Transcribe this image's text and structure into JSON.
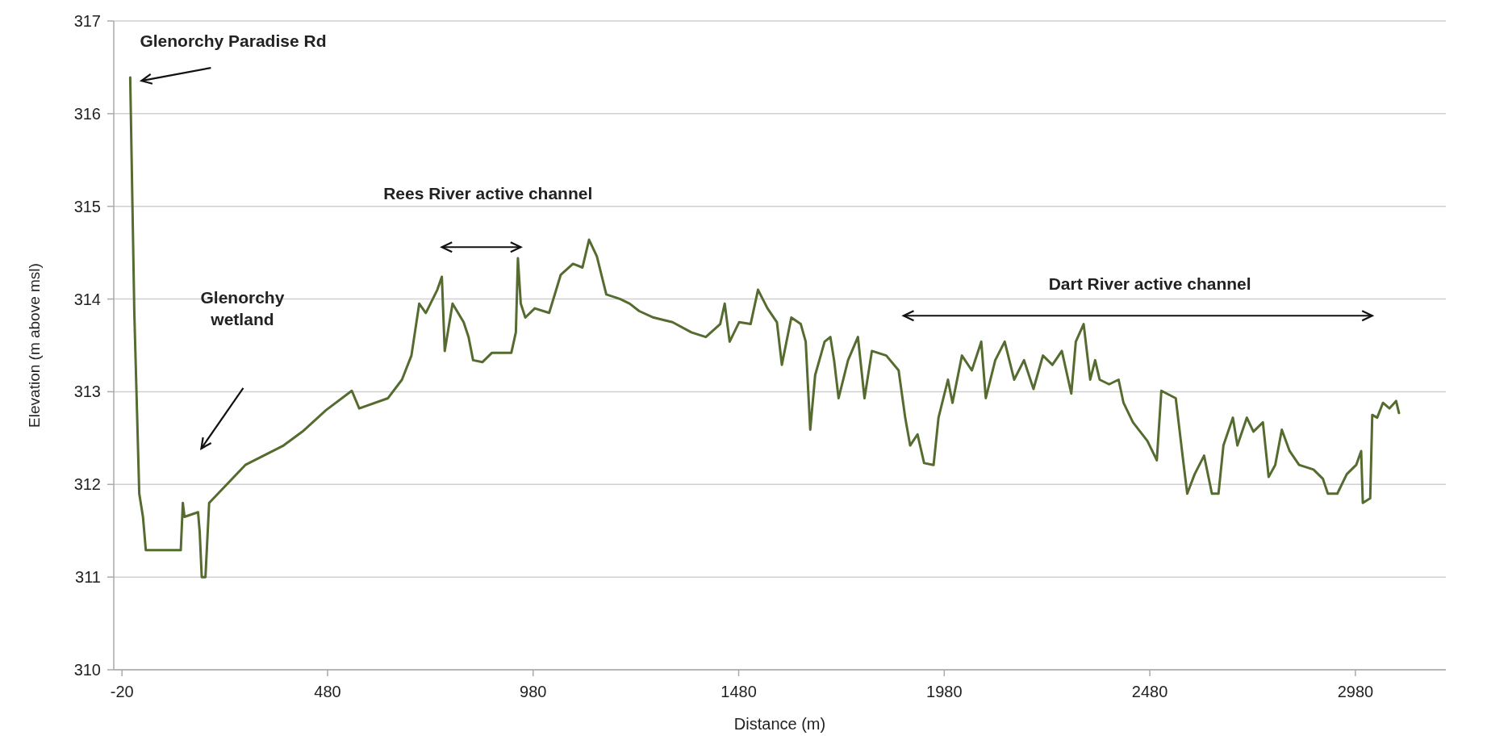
{
  "chart_data": {
    "type": "line",
    "xlabel": "Distance (m)",
    "ylabel": "Elevation (m above msl)",
    "xlim": [
      -40,
      3200
    ],
    "xticks": [
      -20,
      480,
      980,
      1480,
      1980,
      2480,
      2980
    ],
    "ylim": [
      310,
      317
    ],
    "yticks": [
      310,
      311,
      312,
      313,
      314,
      315,
      316,
      317
    ],
    "grid": "y",
    "marker": "none",
    "line_style": "solid",
    "annotations": [
      {
        "text": "Glenorchy Paradise Rd",
        "x": 0,
        "y": 316.39
      },
      "Glenorchy wetland",
      "Rees River  active channel",
      "Dart River  active channel"
    ],
    "series": [
      {
        "color": "#556b2f",
        "x": [
          0,
          10,
          22,
          31,
          38,
          123,
          128,
          132,
          165,
          169,
          174,
          183,
          192,
          280,
          373,
          419,
          476,
          539,
          557,
          627,
          661,
          684,
          703,
          719,
          747,
          758,
          765,
          784,
          811,
          823,
          834,
          857,
          880,
          927,
          938,
          943,
          950,
          961,
          984,
          1019,
          1047,
          1077,
          1100,
          1116,
          1135,
          1158,
          1192,
          1215,
          1238,
          1273,
          1319,
          1365,
          1400,
          1435,
          1446,
          1458,
          1481,
          1509,
          1527,
          1550,
          1573,
          1585,
          1608,
          1631,
          1643,
          1654,
          1666,
          1689,
          1703,
          1712,
          1723,
          1746,
          1770,
          1786,
          1804,
          1839,
          1869,
          1885,
          1897,
          1915,
          1931,
          1954,
          1966,
          1989,
          2000,
          2023,
          2047,
          2070,
          2081,
          2104,
          2127,
          2150,
          2174,
          2197,
          2220,
          2243,
          2266,
          2289,
          2300,
          2319,
          2335,
          2347,
          2358,
          2381,
          2404,
          2416,
          2439,
          2474,
          2497,
          2508,
          2543,
          2550,
          2561,
          2571,
          2589,
          2612,
          2631,
          2647,
          2659,
          2682,
          2693,
          2716,
          2732,
          2755,
          2769,
          2785,
          2801,
          2820,
          2843,
          2878,
          2901,
          2913,
          2936,
          2959,
          2982,
          2994,
          2998,
          3016,
          3021,
          3033,
          3047,
          3063,
          3079,
          3086
        ],
        "values": [
          316.39,
          313.85,
          311.9,
          311.65,
          311.29,
          311.29,
          311.8,
          311.65,
          311.7,
          311.49,
          311.0,
          311.0,
          311.8,
          312.21,
          312.42,
          312.57,
          312.8,
          313.01,
          312.82,
          312.93,
          313.13,
          313.39,
          313.95,
          313.85,
          314.1,
          314.24,
          313.44,
          313.95,
          313.75,
          313.59,
          313.34,
          313.32,
          313.42,
          313.42,
          313.64,
          314.44,
          313.95,
          313.8,
          313.9,
          313.85,
          314.26,
          314.38,
          314.34,
          314.64,
          314.46,
          314.05,
          314.0,
          313.95,
          313.87,
          313.8,
          313.75,
          313.64,
          313.59,
          313.73,
          313.95,
          313.54,
          313.75,
          313.73,
          314.1,
          313.9,
          313.75,
          313.29,
          313.8,
          313.73,
          313.54,
          312.59,
          313.18,
          313.54,
          313.59,
          313.34,
          312.93,
          313.34,
          313.59,
          312.93,
          313.44,
          313.39,
          313.23,
          312.72,
          312.42,
          312.54,
          312.23,
          312.21,
          312.72,
          313.13,
          312.88,
          313.39,
          313.23,
          313.54,
          312.93,
          313.34,
          313.54,
          313.13,
          313.34,
          313.03,
          313.39,
          313.29,
          313.44,
          312.98,
          313.54,
          313.73,
          313.13,
          313.34,
          313.13,
          313.08,
          313.13,
          312.88,
          312.67,
          312.47,
          312.26,
          313.01,
          312.93,
          312.67,
          312.26,
          311.9,
          312.11,
          312.31,
          311.9,
          311.9,
          312.42,
          312.72,
          312.42,
          312.72,
          312.57,
          312.67,
          312.08,
          312.21,
          312.59,
          312.36,
          312.21,
          312.16,
          312.06,
          311.9,
          311.9,
          312.11,
          312.21,
          312.36,
          311.8,
          311.85,
          312.75,
          312.72,
          312.88,
          312.82,
          312.9,
          312.77
        ]
      }
    ]
  }
}
